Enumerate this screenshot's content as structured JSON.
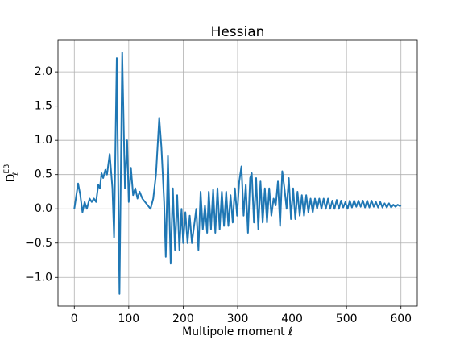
{
  "chart_data": {
    "type": "line",
    "title": "Hessian",
    "xlabel": "Multipole moment ℓ",
    "ylabel": {
      "base": "D",
      "sub": "ℓ",
      "sup": "EB"
    },
    "color": "#1f77b4",
    "grid": true,
    "xlim": [
      -30,
      630
    ],
    "xticks": [
      0,
      100,
      200,
      300,
      400,
      500,
      600
    ],
    "ylim": [
      -1.42,
      2.46
    ],
    "yticks": [
      {
        "value": -1.0,
        "label": "−1.0"
      },
      {
        "value": -0.5,
        "label": "−0.5"
      },
      {
        "value": 0.0,
        "label": "0.0"
      },
      {
        "value": 0.5,
        "label": "0.5"
      },
      {
        "value": 1.0,
        "label": "1.0"
      },
      {
        "value": 1.5,
        "label": "1.5"
      },
      {
        "value": 2.0,
        "label": "2.0"
      }
    ],
    "x": [
      0,
      7,
      11,
      15,
      19,
      23,
      28,
      32,
      36,
      40,
      44,
      47,
      50,
      53,
      57,
      60,
      65,
      70,
      73,
      78,
      83,
      88,
      93,
      97,
      100,
      104,
      108,
      112,
      116,
      120,
      125,
      130,
      135,
      140,
      145,
      150,
      156,
      160,
      165,
      168,
      172,
      177,
      181,
      185,
      189,
      193,
      197,
      200,
      204,
      208,
      212,
      216,
      220,
      224,
      228,
      232,
      236,
      240,
      244,
      247,
      251,
      255,
      259,
      263,
      267,
      271,
      275,
      279,
      283,
      287,
      291,
      295,
      299,
      303,
      307,
      311,
      315,
      319,
      323,
      326,
      330,
      334,
      338,
      342,
      346,
      350,
      354,
      358,
      362,
      366,
      370,
      374,
      378,
      382,
      386,
      390,
      394,
      398,
      402,
      406,
      410,
      414,
      418,
      422,
      426,
      430,
      434,
      438,
      442,
      446,
      450,
      454,
      458,
      462,
      466,
      470,
      474,
      478,
      482,
      486,
      490,
      494,
      498,
      502,
      506,
      510,
      514,
      518,
      522,
      526,
      530,
      534,
      538,
      542,
      546,
      550,
      554,
      558,
      562,
      566,
      570,
      574,
      578,
      582,
      586,
      590,
      594,
      598,
      600
    ],
    "values": [
      0,
      0.37,
      0.2,
      -0.05,
      0.1,
      0,
      0.15,
      0.1,
      0.15,
      0.1,
      0.35,
      0.3,
      0.52,
      0.45,
      0.57,
      0.5,
      0.8,
      0.3,
      -0.42,
      2.2,
      -1.24,
      2.28,
      0.3,
      1.0,
      0.1,
      0.6,
      0.2,
      0.3,
      0.15,
      0.25,
      0.15,
      0.1,
      0.05,
      0,
      0.15,
      0.5,
      1.33,
      0.9,
      0.1,
      -0.7,
      0.77,
      -0.8,
      0.3,
      -0.6,
      0.2,
      -0.6,
      0,
      -0.5,
      -0.05,
      -0.5,
      -0.1,
      -0.5,
      -0.25,
      0,
      -0.6,
      0.25,
      -0.3,
      0.05,
      -0.35,
      0.25,
      -0.3,
      0.28,
      -0.35,
      0.3,
      -0.3,
      0.25,
      -0.25,
      0.25,
      -0.25,
      0.2,
      -0.2,
      0.3,
      -0.1,
      0.4,
      0.62,
      -0.1,
      0.35,
      -0.35,
      0.45,
      0.52,
      -0.2,
      0.45,
      -0.3,
      0.4,
      -0.2,
      0.3,
      -0.2,
      0.3,
      -0.1,
      0.15,
      0.05,
      0.4,
      -0.25,
      0.55,
      0.3,
      0,
      0.45,
      -0.15,
      0.3,
      -0.15,
      0.25,
      -0.1,
      0.2,
      -0.1,
      0.2,
      -0.05,
      0.15,
      -0.05,
      0.15,
      0,
      0.15,
      0,
      0.15,
      0,
      0.15,
      0,
      0.12,
      0,
      0.13,
      0,
      0.12,
      0.02,
      0.1,
      0,
      0.12,
      0.02,
      0.12,
      0.03,
      0.12,
      0.03,
      0.12,
      0.02,
      0.12,
      0.02,
      0.12,
      0.03,
      0.1,
      0.02,
      0.1,
      0.02,
      0.08,
      0.02,
      0.08,
      0.02,
      0.06,
      0.03,
      0.06,
      0.04,
      0.05
    ]
  }
}
